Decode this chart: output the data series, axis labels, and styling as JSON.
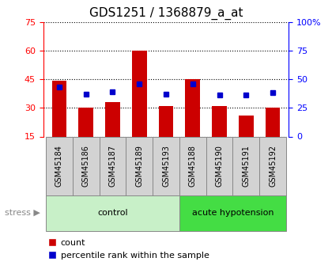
{
  "title": "GDS1251 / 1368879_a_at",
  "samples": [
    "GSM45184",
    "GSM45186",
    "GSM45187",
    "GSM45189",
    "GSM45193",
    "GSM45188",
    "GSM45190",
    "GSM45191",
    "GSM45192"
  ],
  "counts": [
    44,
    30,
    33,
    60,
    31,
    45,
    31,
    26,
    30
  ],
  "percentiles": [
    43,
    37,
    39,
    46,
    37,
    46,
    36,
    36,
    38
  ],
  "ylim_left": [
    15,
    75
  ],
  "ylim_right": [
    0,
    100
  ],
  "yticks_left": [
    15,
    30,
    45,
    60,
    75
  ],
  "yticks_right": [
    0,
    25,
    50,
    75,
    100
  ],
  "ytick_labels_right": [
    "0",
    "25",
    "50",
    "75",
    "100%"
  ],
  "bar_color": "#cc0000",
  "dot_color": "#0000cc",
  "bar_bottom": 15,
  "groups": [
    {
      "label": "control",
      "start": 0,
      "end": 4,
      "color": "#c8f0c8"
    },
    {
      "label": "acute hypotension",
      "start": 5,
      "end": 8,
      "color": "#44dd44"
    }
  ],
  "stress_label": "stress",
  "legend_count_label": "count",
  "legend_pct_label": "percentile rank within the sample",
  "bg_color": "#ffffff",
  "tick_label_bg": "#d3d3d3",
  "title_fontsize": 11,
  "tick_fontsize": 8
}
